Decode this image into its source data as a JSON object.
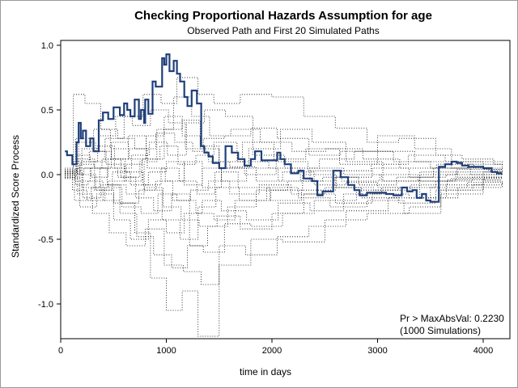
{
  "chart_data": {
    "type": "line",
    "title": "Checking Proportional Hazards Assumption for age",
    "subtitle": "Observed Path and First 20 Simulated Paths",
    "xlabel": "time in days",
    "ylabel": "Standardized Score Process",
    "xlim": [
      0,
      4200
    ],
    "ylim": [
      -1.25,
      1.05
    ],
    "x_ticks": [
      "0",
      "1000",
      "2000",
      "3000",
      "4000"
    ],
    "y_ticks": [
      "1.0",
      "0.5",
      "0.0",
      "-0.5",
      "-1.0"
    ],
    "annotation": [
      "Pr > MaxAbsVal: 0.2230",
      "(1000 Simulations)"
    ],
    "series": [
      {
        "style": "observed",
        "color": "#1f3f7a",
        "x": [
          40,
          60,
          110,
          150,
          170,
          190,
          210,
          240,
          280,
          310,
          360,
          400,
          450,
          500,
          560,
          600,
          630,
          660,
          700,
          740,
          760,
          790,
          800,
          830,
          870,
          900,
          960,
          980,
          1000,
          1030,
          1070,
          1100,
          1130,
          1170,
          1200,
          1240,
          1290,
          1330,
          1360,
          1400,
          1440,
          1500,
          1560,
          1620,
          1680,
          1740,
          1800,
          1840,
          1900,
          1980,
          2050,
          2080,
          2120,
          2180,
          2250,
          2300,
          2380,
          2430,
          2480,
          2580,
          2650,
          2720,
          2780,
          2830,
          2900,
          2950,
          3000,
          3080,
          3150,
          3230,
          3280,
          3330,
          3370,
          3420,
          3460,
          3500,
          3580,
          3640,
          3700,
          3750,
          3800,
          3860,
          3940,
          4000,
          4080,
          4130,
          4180
        ],
        "y": [
          0.18,
          0.15,
          0.08,
          0.25,
          0.4,
          0.28,
          0.34,
          0.22,
          0.28,
          0.18,
          0.42,
          0.48,
          0.43,
          0.52,
          0.46,
          0.55,
          0.5,
          0.45,
          0.58,
          0.43,
          0.5,
          0.4,
          0.58,
          0.47,
          0.72,
          0.68,
          0.9,
          0.85,
          0.93,
          0.8,
          0.88,
          0.78,
          0.72,
          0.6,
          0.53,
          0.65,
          0.55,
          0.22,
          0.17,
          0.14,
          0.09,
          0.05,
          0.22,
          0.17,
          0.12,
          0.07,
          0.12,
          0.18,
          0.11,
          0.11,
          0.17,
          0.12,
          0.08,
          0.01,
          0.03,
          -0.03,
          -0.05,
          -0.16,
          -0.13,
          0.03,
          -0.02,
          -0.08,
          -0.12,
          -0.16,
          -0.14,
          -0.14,
          -0.14,
          -0.15,
          -0.16,
          -0.1,
          -0.13,
          -0.12,
          -0.18,
          -0.15,
          -0.2,
          -0.21,
          0.06,
          0.08,
          0.1,
          0.09,
          0.07,
          0.06,
          0.06,
          0.05,
          0.02,
          0.01,
          0.01
        ]
      },
      {
        "style": "simulated",
        "x": [
          40,
          150,
          280,
          420,
          600,
          780,
          950,
          1100,
          1300,
          1450,
          1700,
          2000,
          2300,
          2600,
          2900,
          3200,
          3550,
          3800,
          4100,
          4180
        ],
        "y": [
          0.02,
          0.15,
          0.1,
          0.28,
          0.45,
          0.62,
          0.55,
          0.75,
          0.62,
          0.55,
          0.62,
          0.6,
          0.45,
          0.36,
          0.25,
          0.28,
          0.15,
          0.12,
          0.08,
          0.08
        ]
      },
      {
        "style": "simulated",
        "x": [
          40,
          140,
          260,
          400,
          560,
          720,
          880,
          1050,
          1200,
          1350,
          1550,
          1800,
          2100,
          2400,
          2800,
          3200,
          3550,
          3900,
          4180
        ],
        "y": [
          0.0,
          -0.08,
          -0.05,
          -0.2,
          -0.3,
          -0.48,
          -0.62,
          -0.72,
          -0.55,
          -0.6,
          -0.38,
          -0.4,
          -0.3,
          -0.2,
          -0.12,
          -0.1,
          -0.05,
          -0.02,
          -0.02
        ]
      },
      {
        "style": "simulated",
        "x": [
          40,
          180,
          320,
          500,
          700,
          850,
          1000,
          1150,
          1300,
          1500,
          1800,
          2100,
          2500,
          2900,
          3300,
          3600,
          4000,
          4180
        ],
        "y": [
          -0.02,
          0.08,
          -0.12,
          -0.22,
          -0.45,
          -0.8,
          -1.05,
          -0.9,
          -1.25,
          -0.7,
          -0.5,
          -0.52,
          -0.35,
          -0.3,
          -0.25,
          -0.15,
          -0.04,
          -0.04
        ]
      },
      {
        "style": "simulated",
        "x": [
          40,
          120,
          230,
          380,
          540,
          700,
          900,
          1080,
          1250,
          1400,
          1600,
          1850,
          2100,
          2400,
          2700,
          3000,
          3400,
          3700,
          4000,
          4180
        ],
        "y": [
          0.05,
          0.62,
          0.55,
          0.35,
          0.28,
          0.2,
          0.32,
          0.25,
          0.18,
          0.1,
          0.06,
          -0.05,
          0.02,
          -0.08,
          -0.06,
          -0.1,
          -0.05,
          -0.03,
          0.0,
          0.0
        ]
      },
      {
        "style": "simulated",
        "x": [
          40,
          160,
          300,
          460,
          620,
          800,
          980,
          1160,
          1330,
          1500,
          1750,
          2050,
          2350,
          2700,
          3100,
          3500,
          3850,
          4180
        ],
        "y": [
          0.0,
          -0.15,
          -0.3,
          -0.45,
          -0.55,
          -0.42,
          -0.7,
          -0.75,
          -0.85,
          -0.55,
          -0.62,
          -0.48,
          -0.4,
          -0.28,
          -0.18,
          -0.1,
          -0.06,
          -0.06
        ]
      },
      {
        "style": "simulated",
        "x": [
          40,
          200,
          360,
          520,
          680,
          850,
          1020,
          1180,
          1350,
          1550,
          1800,
          2050,
          2350,
          2650,
          3000,
          3350,
          3700,
          4180
        ],
        "y": [
          0.03,
          0.2,
          0.3,
          0.45,
          0.38,
          0.5,
          0.4,
          0.2,
          0.28,
          0.3,
          0.36,
          0.28,
          0.15,
          0.18,
          0.3,
          0.2,
          0.1,
          0.05
        ]
      },
      {
        "style": "simulated",
        "x": [
          40,
          110,
          250,
          420,
          580,
          760,
          920,
          1100,
          1280,
          1450,
          1650,
          1950,
          2250,
          2550,
          2900,
          3250,
          3600,
          4000,
          4180
        ],
        "y": [
          -0.02,
          -0.12,
          -0.2,
          -0.1,
          -0.25,
          -0.3,
          -0.15,
          -0.2,
          -0.3,
          -0.35,
          -0.2,
          -0.1,
          -0.18,
          -0.25,
          -0.2,
          -0.3,
          -0.12,
          -0.05,
          -0.05
        ]
      },
      {
        "style": "simulated",
        "x": [
          40,
          170,
          330,
          480,
          650,
          820,
          990,
          1170,
          1340,
          1520,
          1780,
          2080,
          2380,
          2700,
          3050,
          3400,
          3750,
          4180
        ],
        "y": [
          0.04,
          0.25,
          0.18,
          0.12,
          0.2,
          0.05,
          -0.05,
          0.1,
          -0.1,
          0.05,
          0.2,
          0.35,
          0.25,
          0.1,
          -0.05,
          0.0,
          0.04,
          0.02
        ]
      },
      {
        "style": "simulated",
        "x": [
          40,
          130,
          280,
          440,
          620,
          790,
          970,
          1140,
          1310,
          1480,
          1700,
          2000,
          2300,
          2600,
          2950,
          3300,
          3650,
          4000,
          4180
        ],
        "y": [
          0.0,
          -0.05,
          0.05,
          -0.08,
          -0.15,
          -0.1,
          -0.25,
          -0.35,
          -0.4,
          -0.32,
          -0.42,
          -0.3,
          -0.15,
          -0.22,
          -0.15,
          -0.18,
          -0.08,
          -0.03,
          -0.03
        ]
      },
      {
        "style": "simulated",
        "x": [
          40,
          190,
          350,
          510,
          670,
          840,
          1010,
          1190,
          1360,
          1560,
          1820,
          2120,
          2450,
          2780,
          3150,
          3500,
          3850,
          4180
        ],
        "y": [
          0.02,
          0.1,
          0.22,
          0.05,
          0.15,
          0.25,
          0.15,
          0.4,
          0.5,
          0.45,
          0.15,
          0.05,
          0.12,
          0.18,
          0.1,
          0.05,
          0.08,
          0.07
        ]
      },
      {
        "style": "simulated",
        "x": [
          40,
          150,
          290,
          450,
          610,
          780,
          950,
          1120,
          1290,
          1460,
          1680,
          1980,
          2280,
          2600,
          2950,
          3300,
          3650,
          4000,
          4180
        ],
        "y": [
          -0.01,
          0.05,
          -0.02,
          0.12,
          0.02,
          -0.08,
          0.05,
          -0.05,
          -0.15,
          0.02,
          -0.1,
          -0.2,
          -0.12,
          -0.02,
          0.05,
          -0.02,
          0.0,
          0.02,
          0.02
        ]
      },
      {
        "style": "simulated",
        "x": [
          40,
          210,
          380,
          560,
          740,
          900,
          1060,
          1230,
          1400,
          1600,
          1880,
          2180,
          2500,
          2850,
          3200,
          3550,
          3900,
          4180
        ],
        "y": [
          0.01,
          -0.18,
          -0.08,
          -0.22,
          -0.12,
          -0.05,
          -0.2,
          -0.12,
          -0.05,
          -0.15,
          -0.08,
          -0.15,
          -0.1,
          -0.18,
          -0.22,
          -0.12,
          -0.08,
          -0.06
        ]
      },
      {
        "style": "simulated",
        "x": [
          40,
          140,
          310,
          470,
          640,
          810,
          980,
          1150,
          1320,
          1500,
          1720,
          2020,
          2320,
          2640,
          3000,
          3350,
          3700,
          4050,
          4180
        ],
        "y": [
          0.03,
          0.28,
          0.35,
          0.2,
          0.3,
          0.12,
          0.35,
          0.42,
          0.22,
          0.1,
          0.25,
          0.12,
          0.2,
          0.08,
          0.18,
          0.1,
          0.05,
          0.03,
          0.03
        ]
      },
      {
        "style": "simulated",
        "x": [
          40,
          180,
          340,
          500,
          660,
          830,
          1000,
          1170,
          1340,
          1520,
          1760,
          2060,
          2360,
          2680,
          3040,
          3400,
          3760,
          4180
        ],
        "y": [
          -0.03,
          -0.25,
          -0.15,
          -0.35,
          -0.5,
          -0.35,
          -0.45,
          -0.3,
          -0.2,
          -0.28,
          -0.35,
          -0.22,
          -0.28,
          -0.15,
          -0.1,
          -0.18,
          -0.1,
          -0.05
        ]
      },
      {
        "style": "simulated",
        "x": [
          40,
          120,
          270,
          430,
          600,
          770,
          940,
          1110,
          1280,
          1450,
          1670,
          1970,
          2270,
          2590,
          2940,
          3290,
          3640,
          4000,
          4180
        ],
        "y": [
          0.0,
          0.1,
          0.18,
          0.08,
          -0.05,
          0.12,
          0.22,
          0.08,
          0.15,
          0.25,
          0.1,
          0.05,
          -0.05,
          0.03,
          0.08,
          0.15,
          0.1,
          0.04,
          0.04
        ]
      },
      {
        "style": "simulated",
        "x": [
          40,
          200,
          370,
          540,
          710,
          880,
          1050,
          1220,
          1390,
          1580,
          1850,
          2150,
          2480,
          2820,
          3180,
          3530,
          3880,
          4180
        ],
        "y": [
          0.02,
          -0.1,
          0.05,
          -0.02,
          -0.18,
          -0.28,
          -0.15,
          -0.55,
          -0.4,
          -0.25,
          -0.12,
          -0.05,
          -0.02,
          -0.08,
          -0.02,
          0.05,
          0.0,
          -0.01
        ]
      },
      {
        "style": "simulated",
        "x": [
          40,
          160,
          320,
          480,
          640,
          810,
          980,
          1150,
          1320,
          1500,
          1740,
          2040,
          2340,
          2660,
          3020,
          3380,
          3740,
          4180
        ],
        "y": [
          0.01,
          0.12,
          0.05,
          0.25,
          0.12,
          0.3,
          0.45,
          0.3,
          0.2,
          0.05,
          0.0,
          0.1,
          0.03,
          -0.05,
          0.0,
          -0.05,
          0.02,
          0.0
        ]
      },
      {
        "style": "simulated",
        "x": [
          40,
          130,
          290,
          450,
          620,
          790,
          960,
          1130,
          1300,
          1470,
          1690,
          1990,
          2290,
          2610,
          2960,
          3310,
          3660,
          4010,
          4180
        ],
        "y": [
          -0.02,
          -0.2,
          -0.1,
          -0.05,
          0.08,
          -0.12,
          -0.35,
          -0.5,
          -0.25,
          -0.1,
          -0.2,
          -0.12,
          0.0,
          -0.1,
          -0.12,
          -0.08,
          -0.04,
          -0.02,
          -0.02
        ]
      },
      {
        "style": "simulated",
        "x": [
          40,
          220,
          390,
          570,
          750,
          910,
          1070,
          1240,
          1410,
          1610,
          1890,
          2190,
          2510,
          2860,
          3210,
          3560,
          3910,
          4180
        ],
        "y": [
          0.0,
          0.05,
          0.12,
          -0.02,
          0.1,
          0.35,
          0.6,
          0.45,
          0.3,
          0.35,
          0.25,
          0.18,
          0.2,
          0.12,
          0.05,
          0.08,
          0.05,
          0.04
        ]
      },
      {
        "style": "simulated",
        "x": [
          40,
          170,
          330,
          490,
          660,
          830,
          1000,
          1170,
          1340,
          1520,
          1760,
          2060,
          2360,
          2680,
          3040,
          3400,
          3760,
          4180
        ],
        "y": [
          0.01,
          0.0,
          -0.12,
          0.02,
          -0.08,
          0.02,
          0.1,
          -0.08,
          0.05,
          -0.05,
          0.05,
          -0.05,
          0.05,
          0.0,
          -0.05,
          0.02,
          -0.02,
          -0.02
        ]
      }
    ]
  }
}
